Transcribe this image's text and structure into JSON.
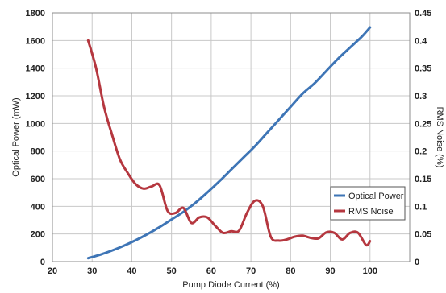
{
  "chart_data": {
    "type": "line",
    "title": "",
    "xlabel": "Pump Diode Current (%)",
    "ylabel": "Optical Power (mW)",
    "y2label": "RMS Noise (%)",
    "xlim": [
      20,
      110
    ],
    "ylim": [
      0,
      1800
    ],
    "y2lim": [
      0,
      0.45
    ],
    "x_ticks": [
      "20",
      "30",
      "40",
      "50",
      "60",
      "70",
      "80",
      "90",
      "100"
    ],
    "y_ticks": [
      "0",
      "200",
      "400",
      "600",
      "800",
      "1000",
      "1200",
      "1400",
      "1600",
      "1800"
    ],
    "y2_ticks": [
      "0",
      "0.05",
      "0.1",
      "0.15",
      "0.2",
      "0.25",
      "0.3",
      "0.35",
      "0.4",
      "0.45"
    ],
    "grid": true,
    "legend_position": "bottom-right",
    "series": [
      {
        "name": "Optical Power",
        "axis": "left",
        "color": "#3e75b6",
        "x": [
          29,
          32,
          35,
          38,
          41,
          44,
          47,
          50,
          53,
          56,
          59,
          62,
          65,
          68,
          71,
          74,
          77,
          80,
          83,
          86,
          89,
          92,
          95,
          98,
          100
        ],
        "y": [
          25,
          50,
          80,
          115,
          155,
          200,
          250,
          305,
          360,
          425,
          500,
          580,
          665,
          750,
          835,
          930,
          1025,
          1120,
          1215,
          1290,
          1380,
          1470,
          1550,
          1630,
          1695
        ]
      },
      {
        "name": "RMS Noise",
        "axis": "right",
        "color": "#b5373f",
        "x": [
          29,
          31,
          33,
          35,
          37,
          39,
          41,
          43,
          45,
          47,
          49,
          51,
          53,
          55,
          57,
          59,
          61,
          63,
          65,
          67,
          69,
          71,
          73,
          75,
          77,
          79,
          81,
          83,
          85,
          87,
          89,
          91,
          93,
          95,
          97,
          99,
          100
        ],
        "y": [
          0.4,
          0.35,
          0.28,
          0.23,
          0.185,
          0.16,
          0.14,
          0.132,
          0.136,
          0.138,
          0.092,
          0.088,
          0.097,
          0.07,
          0.08,
          0.08,
          0.065,
          0.052,
          0.055,
          0.056,
          0.088,
          0.11,
          0.1,
          0.045,
          0.038,
          0.04,
          0.045,
          0.047,
          0.043,
          0.042,
          0.053,
          0.052,
          0.04,
          0.052,
          0.052,
          0.03,
          0.037
        ]
      }
    ]
  }
}
